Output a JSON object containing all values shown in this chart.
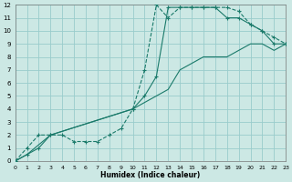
{
  "xlabel": "Humidex (Indice chaleur)",
  "bg_color": "#cce8e4",
  "grid_color": "#99cccc",
  "line_color": "#1a7a6a",
  "xlim": [
    0,
    23
  ],
  "ylim": [
    0,
    12
  ],
  "xticks": [
    0,
    1,
    2,
    3,
    4,
    5,
    6,
    7,
    8,
    9,
    10,
    11,
    12,
    13,
    14,
    15,
    16,
    17,
    18,
    19,
    20,
    21,
    22,
    23
  ],
  "yticks": [
    0,
    1,
    2,
    3,
    4,
    5,
    6,
    7,
    8,
    9,
    10,
    11,
    12
  ],
  "dashed_x": [
    0,
    1,
    2,
    3,
    4,
    5,
    6,
    7,
    8,
    9,
    10,
    11,
    12,
    13,
    14,
    15,
    16,
    17,
    18,
    19,
    20,
    21,
    22,
    23
  ],
  "dashed_y": [
    0,
    1,
    2,
    2,
    2,
    1.5,
    1.5,
    1.5,
    2,
    2.5,
    4,
    7,
    12,
    11,
    11.8,
    11.8,
    11.8,
    11.8,
    11.8,
    11.5,
    10.5,
    10,
    9.5,
    9
  ],
  "upper_x": [
    0,
    1,
    2,
    3,
    10,
    11,
    12,
    13,
    14,
    15,
    16,
    17,
    18,
    19,
    20,
    21,
    22,
    23
  ],
  "upper_y": [
    0,
    0.5,
    1,
    2,
    4,
    5,
    6.5,
    11.8,
    11.8,
    11.8,
    11.8,
    11.8,
    11,
    11,
    10.5,
    10,
    9,
    9
  ],
  "lower_x": [
    0,
    1,
    3,
    10,
    13,
    14,
    15,
    16,
    17,
    18,
    19,
    20,
    21,
    22,
    23
  ],
  "lower_y": [
    0,
    0.5,
    2,
    4,
    5.5,
    7,
    7.5,
    8,
    8,
    8,
    8.5,
    9,
    9,
    8.5,
    9
  ]
}
